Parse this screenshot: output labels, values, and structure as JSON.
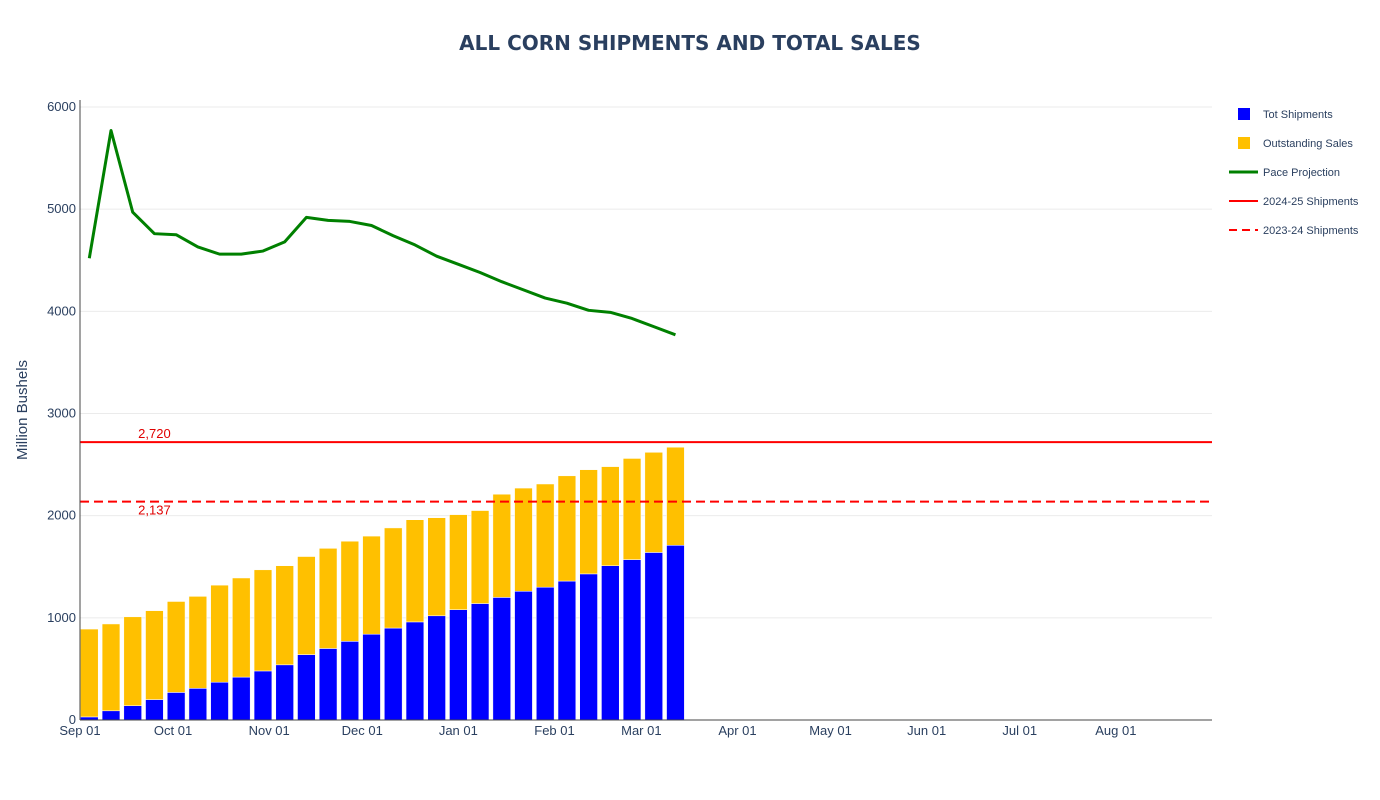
{
  "chart_data": {
    "type": "bar",
    "title": "ALL CORN SHIPMENTS AND TOTAL SALES",
    "xlabel": "",
    "ylabel": "Million Bushels",
    "ylim": [
      0,
      6000
    ],
    "y_ticks": [
      0,
      1000,
      2000,
      3000,
      4000,
      5000,
      6000
    ],
    "x_tick_labels": [
      "Sep 01",
      "Oct 01",
      "Nov 01",
      "Dec 01",
      "Jan 01",
      "Feb 01",
      "Mar 01",
      "Apr 01",
      "May 01",
      "Jun 01",
      "Jul 01",
      "Aug 01"
    ],
    "x_tick_days": [
      0,
      30,
      61,
      91,
      122,
      153,
      181,
      212,
      242,
      273,
      303,
      334
    ],
    "x_range_days": [
      0,
      365
    ],
    "week_days": [
      3,
      10,
      17,
      24,
      31,
      38,
      45,
      52,
      59,
      66,
      73,
      80,
      87,
      94,
      101,
      108,
      115,
      122,
      129,
      136,
      143,
      150,
      157,
      164,
      171,
      178,
      185,
      192
    ],
    "series": [
      {
        "name": "Tot Shipments",
        "kind": "bar",
        "color": "#0000ff",
        "values": [
          30,
          90,
          140,
          200,
          270,
          310,
          370,
          420,
          480,
          540,
          640,
          700,
          770,
          840,
          900,
          960,
          1020,
          1080,
          1140,
          1200,
          1260,
          1300,
          1360,
          1430,
          1510,
          1570,
          1640,
          1710
        ]
      },
      {
        "name": "Outstanding Sales",
        "kind": "bar",
        "color": "#ffc000",
        "values": [
          860,
          850,
          870,
          870,
          890,
          900,
          950,
          970,
          990,
          970,
          960,
          980,
          980,
          960,
          980,
          1000,
          960,
          930,
          910,
          1010,
          1010,
          1010,
          1030,
          1020,
          970,
          990,
          980,
          960
        ]
      },
      {
        "name": "Pace Projection",
        "kind": "line",
        "color": "#008000",
        "values": [
          4520,
          5770,
          4970,
          4760,
          4750,
          4630,
          4560,
          4560,
          4590,
          4680,
          4920,
          4890,
          4880,
          4840,
          4740,
          4650,
          4540,
          4460,
          4380,
          4290,
          4210,
          4130,
          4080,
          4010,
          3990,
          3930,
          3850,
          3770
        ]
      },
      {
        "name": "2024-25 Shipments",
        "kind": "hline",
        "color": "#ff0000",
        "value": 2720,
        "label": "2,720"
      },
      {
        "name": "2023-24 Shipments",
        "kind": "hline-dash",
        "color": "#ff0000",
        "value": 2137,
        "label": "2,137"
      }
    ],
    "legend_position": "top-right"
  }
}
